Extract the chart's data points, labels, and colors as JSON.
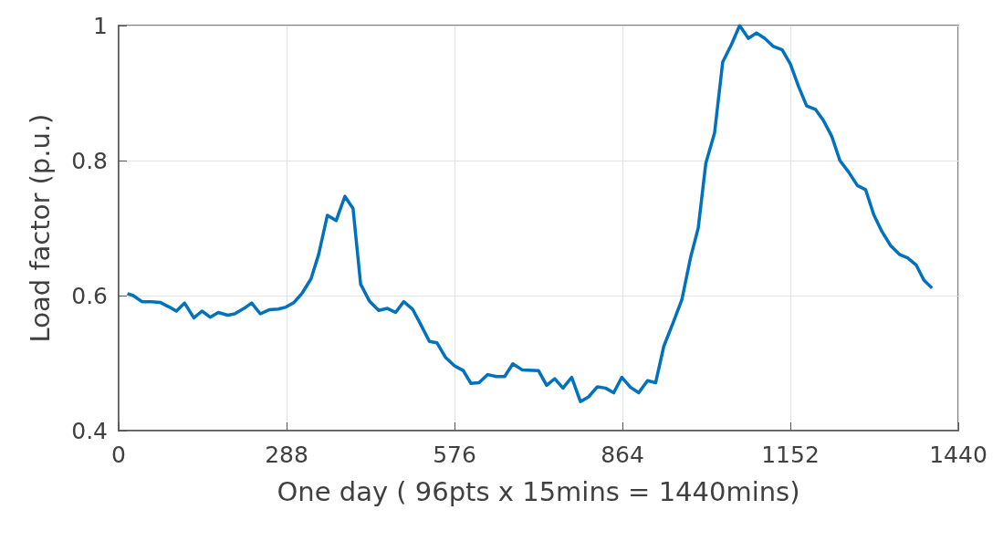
{
  "chart_data": {
    "type": "line",
    "xlabel": "One day ( 96pts x 15mins = 1440mins)",
    "ylabel": "Load factor (p.u.)",
    "xlim": [
      0,
      1440
    ],
    "xticks": [
      0,
      288,
      576,
      864,
      1152,
      1440
    ],
    "ylim": [
      0.4,
      1
    ],
    "yticks": [
      0.4,
      0.6,
      0.8,
      1
    ],
    "grid": true,
    "marker": "none",
    "line_style": "solid",
    "series": [
      {
        "color": "#0072bd",
        "x": [
          15,
          25,
          40,
          56,
          71,
          87,
          99,
          113,
          129,
          143,
          157,
          171,
          187,
          199,
          215,
          228,
          243,
          258,
          274,
          287,
          301,
          315,
          330,
          343,
          358,
          373,
          388,
          402,
          415,
          430,
          446,
          461,
          475,
          489,
          504,
          517,
          533,
          546,
          561,
          576,
          591,
          604,
          618,
          633,
          648,
          662,
          676,
          692,
          720,
          734,
          748,
          762,
          777,
          792,
          806,
          821,
          835,
          849,
          863,
          878,
          892,
          907,
          921,
          935,
          951,
          966,
          981,
          994,
          1007,
          1022,
          1036,
          1051,
          1065,
          1080,
          1094,
          1108,
          1123,
          1138,
          1152,
          1166,
          1180,
          1195,
          1209,
          1223,
          1237,
          1252,
          1267,
          1281,
          1295,
          1309,
          1324,
          1339,
          1353,
          1368,
          1381,
          1395
        ],
        "values": [
          0.603,
          0.6,
          0.591,
          0.591,
          0.59,
          0.583,
          0.577,
          0.589,
          0.567,
          0.577,
          0.568,
          0.575,
          0.571,
          0.573,
          0.581,
          0.589,
          0.573,
          0.579,
          0.58,
          0.583,
          0.59,
          0.604,
          0.625,
          0.661,
          0.719,
          0.711,
          0.747,
          0.729,
          0.617,
          0.592,
          0.578,
          0.581,
          0.575,
          0.591,
          0.58,
          0.559,
          0.532,
          0.53,
          0.508,
          0.496,
          0.489,
          0.47,
          0.471,
          0.483,
          0.48,
          0.48,
          0.499,
          0.49,
          0.489,
          0.467,
          0.477,
          0.463,
          0.479,
          0.443,
          0.45,
          0.465,
          0.463,
          0.456,
          0.479,
          0.464,
          0.456,
          0.474,
          0.471,
          0.525,
          0.56,
          0.594,
          0.657,
          0.7,
          0.796,
          0.841,
          0.946,
          0.972,
          1.0,
          0.981,
          0.989,
          0.981,
          0.969,
          0.964,
          0.943,
          0.91,
          0.881,
          0.876,
          0.859,
          0.836,
          0.8,
          0.783,
          0.763,
          0.757,
          0.72,
          0.695,
          0.674,
          0.661,
          0.656,
          0.645,
          0.623,
          0.611
        ]
      }
    ]
  }
}
